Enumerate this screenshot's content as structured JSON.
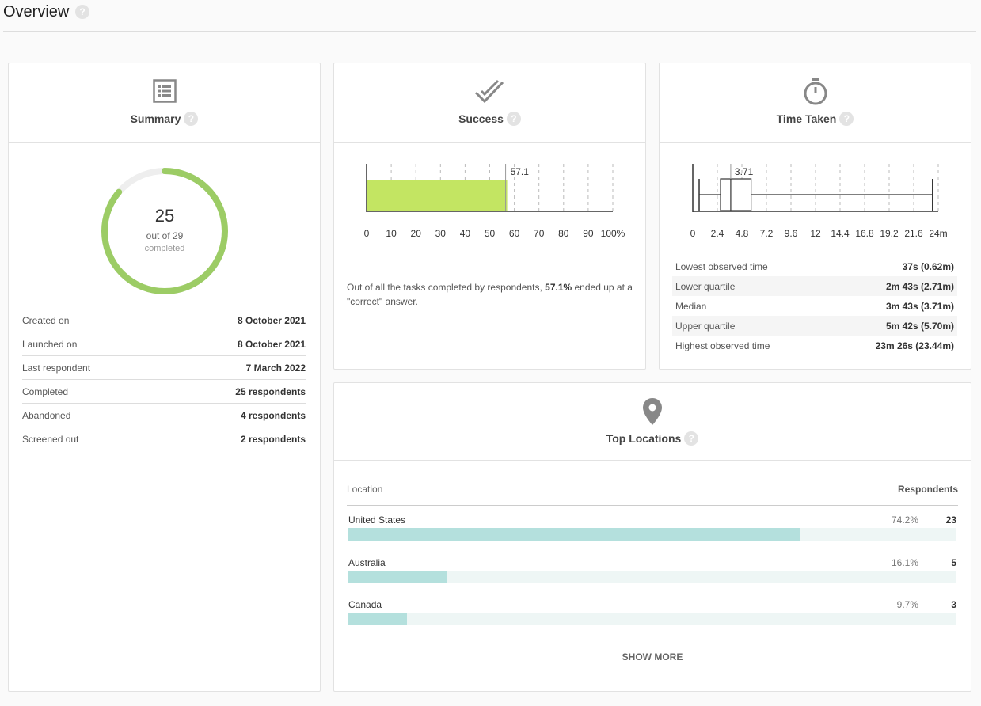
{
  "page": {
    "title": "Overview",
    "help_glyph": "?"
  },
  "summary": {
    "title": "Summary",
    "icon": "list-icon",
    "completed_count": "25",
    "out_of_text": "out of 29",
    "completed_label": "completed",
    "completion_fraction": 0.862,
    "ring_color": "#9ccc65",
    "ring_track_color": "#eeeeee",
    "rows": [
      {
        "label": "Created on",
        "value": "8 October 2021"
      },
      {
        "label": "Launched on",
        "value": "8 October 2021"
      },
      {
        "label": "Last respondent",
        "value": "7 March 2022"
      },
      {
        "label": "Completed",
        "value": "25 respondents"
      },
      {
        "label": "Abandoned",
        "value": "4 respondents"
      },
      {
        "label": "Screened out",
        "value": "2 respondents"
      }
    ]
  },
  "success": {
    "title": "Success",
    "icon": "double-check-icon",
    "text_prefix": "Out of all the tasks completed by respondents, ",
    "text_value": "57.1%",
    "text_suffix": " ended up at a \"correct\" answer.",
    "bar_color": "#c3e562"
  },
  "time_taken": {
    "title": "Time Taken",
    "icon": "stopwatch-icon",
    "rows": [
      {
        "label": "Lowest observed time",
        "value": "37s (0.62m)"
      },
      {
        "label": "Lower quartile",
        "value": "2m 43s (2.71m)"
      },
      {
        "label": "Median",
        "value": "3m 43s (3.71m)"
      },
      {
        "label": "Upper quartile",
        "value": "5m 42s (5.70m)"
      },
      {
        "label": "Highest observed time",
        "value": "23m 26s (23.44m)"
      }
    ]
  },
  "locations": {
    "title": "Top Locations",
    "icon": "map-pin-icon",
    "col_location": "Location",
    "col_respondents": "Respondents",
    "bar_color": "#b4e0dd",
    "track_color": "#eef6f5",
    "items": [
      {
        "name": "United States",
        "percent": "74.2%",
        "count": "23",
        "fraction": 0.742
      },
      {
        "name": "Australia",
        "percent": "16.1%",
        "count": "5",
        "fraction": 0.161
      },
      {
        "name": "Canada",
        "percent": "9.7%",
        "count": "3",
        "fraction": 0.097
      }
    ],
    "show_more": "SHOW MORE"
  },
  "chart_data": [
    {
      "type": "bar",
      "orientation": "horizontal",
      "categories": [
        ""
      ],
      "values": [
        57.1
      ],
      "data_labels": [
        "57.1"
      ],
      "xlim": [
        0,
        100
      ],
      "x_ticks": [
        "0",
        "10",
        "20",
        "30",
        "40",
        "50",
        "60",
        "70",
        "80",
        "90",
        "100%"
      ],
      "grid": true
    },
    {
      "type": "box",
      "orientation": "horizontal",
      "min": 0.62,
      "q1": 2.71,
      "median": 3.71,
      "q3": 5.7,
      "max": 23.44,
      "median_label": "3.71",
      "xlim": [
        0,
        24
      ],
      "x_ticks": [
        "0",
        "2.4",
        "4.8",
        "7.2",
        "9.6",
        "12",
        "14.4",
        "16.8",
        "19.2",
        "21.6",
        "24m"
      ],
      "grid": true
    }
  ]
}
